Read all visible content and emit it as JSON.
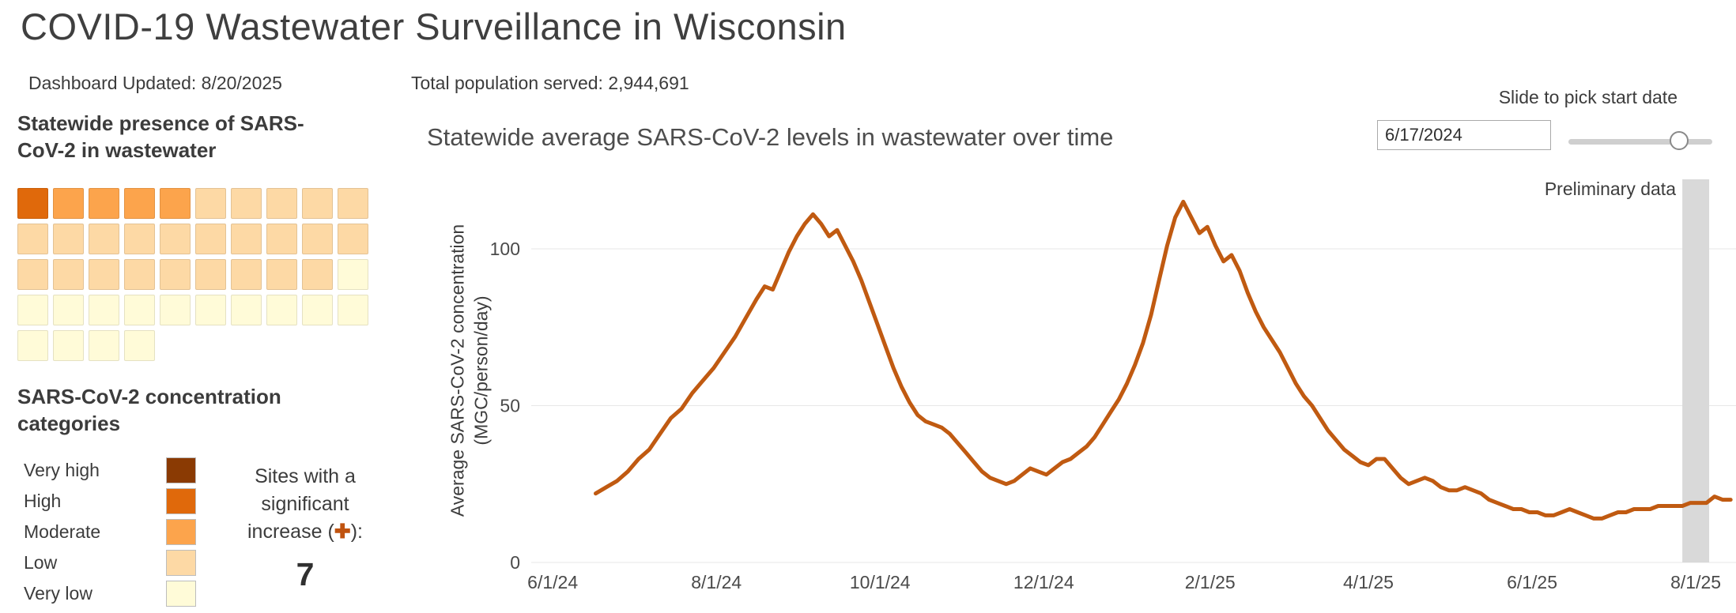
{
  "page": {
    "title": "COVID-19 Wastewater Surveillance in Wisconsin",
    "updated": "Dashboard Updated: 8/20/2025",
    "population": "Total population served: 2,944,691"
  },
  "presence": {
    "heading": "Statewide presence of SARS-CoV-2 in wastewater",
    "columns": 10,
    "grid": [
      [
        "high",
        "moderate",
        "moderate",
        "moderate",
        "moderate",
        "low",
        "low",
        "low",
        "low",
        "low"
      ],
      [
        "low",
        "low",
        "low",
        "low",
        "low",
        "low",
        "low",
        "low",
        "low",
        "low"
      ],
      [
        "low",
        "low",
        "low",
        "low",
        "low",
        "low",
        "low",
        "low",
        "low",
        "very_low"
      ],
      [
        "very_low",
        "very_low",
        "very_low",
        "very_low",
        "very_low",
        "very_low",
        "very_low",
        "very_low",
        "very_low",
        "very_low"
      ],
      [
        "very_low",
        "very_low",
        "very_low",
        "very_low"
      ]
    ]
  },
  "categories": {
    "heading": "SARS-CoV-2 concentration categories",
    "items": [
      {
        "key": "very_high",
        "label": "Very high",
        "color": "#8a3a03"
      },
      {
        "key": "high",
        "label": "High",
        "color": "#e0690b"
      },
      {
        "key": "moderate",
        "label": "Moderate",
        "color": "#fca44c"
      },
      {
        "key": "low",
        "label": "Low",
        "color": "#fdd9a5"
      },
      {
        "key": "very_low",
        "label": "Very low",
        "color": "#fffbd8"
      }
    ]
  },
  "sites_increase": {
    "line1": "Sites with a",
    "line2": "significant",
    "line3_prefix": "increase (",
    "plus_icon": "✚",
    "plus_color": "#c0530f",
    "line3_suffix": "):",
    "count": "7"
  },
  "controls": {
    "slider_label": "Slide to pick start date",
    "date_value": "6/17/2024"
  },
  "chart_labels": {
    "y_axis_line1": "Average SARS-CoV-2 concentration",
    "y_axis_line2": "(MGC/person/day)",
    "preliminary": "Preliminary data"
  },
  "chart_data": {
    "type": "line",
    "title": "Statewide average SARS-CoV-2 levels in wastewater over time",
    "xlabel": "",
    "ylabel": "Average SARS-CoV-2 concentration (MGC/person/day)",
    "x_domain": [
      "2024-05-24",
      "2025-08-16"
    ],
    "ylim": [
      0,
      122
    ],
    "y_ticks": [
      0,
      50,
      100
    ],
    "x_ticks": [
      {
        "date": "2024-06-01",
        "label": "6/1/24"
      },
      {
        "date": "2024-08-01",
        "label": "8/1/24"
      },
      {
        "date": "2024-10-01",
        "label": "10/1/24"
      },
      {
        "date": "2024-12-01",
        "label": "12/1/24"
      },
      {
        "date": "2025-02-01",
        "label": "2/1/25"
      },
      {
        "date": "2025-04-01",
        "label": "4/1/25"
      },
      {
        "date": "2025-06-01",
        "label": "6/1/25"
      },
      {
        "date": "2025-08-01",
        "label": "8/1/25"
      }
    ],
    "grid": "horizontal",
    "legend_position": "none",
    "line_color": "#c05a11",
    "preliminary_band": {
      "start": "2025-07-27",
      "end": "2025-08-06",
      "color": "#d9d9d9",
      "label": "Preliminary data"
    },
    "series": [
      {
        "name": "Statewide average SARS-CoV-2 concentration",
        "points": [
          [
            "2024-06-17",
            22
          ],
          [
            "2024-06-21",
            24
          ],
          [
            "2024-06-25",
            26
          ],
          [
            "2024-06-29",
            29
          ],
          [
            "2024-07-03",
            33
          ],
          [
            "2024-07-07",
            36
          ],
          [
            "2024-07-11",
            41
          ],
          [
            "2024-07-15",
            46
          ],
          [
            "2024-07-19",
            49
          ],
          [
            "2024-07-23",
            54
          ],
          [
            "2024-07-27",
            58
          ],
          [
            "2024-07-31",
            62
          ],
          [
            "2024-08-04",
            67
          ],
          [
            "2024-08-08",
            72
          ],
          [
            "2024-08-12",
            78
          ],
          [
            "2024-08-16",
            84
          ],
          [
            "2024-08-19",
            88
          ],
          [
            "2024-08-22",
            87
          ],
          [
            "2024-08-25",
            93
          ],
          [
            "2024-08-28",
            99
          ],
          [
            "2024-08-31",
            104
          ],
          [
            "2024-09-03",
            108
          ],
          [
            "2024-09-06",
            111
          ],
          [
            "2024-09-09",
            108
          ],
          [
            "2024-09-12",
            104
          ],
          [
            "2024-09-15",
            106
          ],
          [
            "2024-09-18",
            101
          ],
          [
            "2024-09-21",
            96
          ],
          [
            "2024-09-24",
            90
          ],
          [
            "2024-09-27",
            83
          ],
          [
            "2024-09-30",
            76
          ],
          [
            "2024-10-03",
            69
          ],
          [
            "2024-10-06",
            62
          ],
          [
            "2024-10-09",
            56
          ],
          [
            "2024-10-12",
            51
          ],
          [
            "2024-10-15",
            47
          ],
          [
            "2024-10-18",
            45
          ],
          [
            "2024-10-21",
            44
          ],
          [
            "2024-10-24",
            43
          ],
          [
            "2024-10-27",
            41
          ],
          [
            "2024-10-30",
            38
          ],
          [
            "2024-11-02",
            35
          ],
          [
            "2024-11-05",
            32
          ],
          [
            "2024-11-08",
            29
          ],
          [
            "2024-11-11",
            27
          ],
          [
            "2024-11-14",
            26
          ],
          [
            "2024-11-17",
            25
          ],
          [
            "2024-11-20",
            26
          ],
          [
            "2024-11-23",
            28
          ],
          [
            "2024-11-26",
            30
          ],
          [
            "2024-11-29",
            29
          ],
          [
            "2024-12-02",
            28
          ],
          [
            "2024-12-05",
            30
          ],
          [
            "2024-12-08",
            32
          ],
          [
            "2024-12-11",
            33
          ],
          [
            "2024-12-14",
            35
          ],
          [
            "2024-12-17",
            37
          ],
          [
            "2024-12-20",
            40
          ],
          [
            "2024-12-23",
            44
          ],
          [
            "2024-12-26",
            48
          ],
          [
            "2024-12-29",
            52
          ],
          [
            "2025-01-01",
            57
          ],
          [
            "2025-01-04",
            63
          ],
          [
            "2025-01-07",
            70
          ],
          [
            "2025-01-10",
            79
          ],
          [
            "2025-01-13",
            90
          ],
          [
            "2025-01-16",
            101
          ],
          [
            "2025-01-19",
            110
          ],
          [
            "2025-01-22",
            115
          ],
          [
            "2025-01-25",
            110
          ],
          [
            "2025-01-28",
            105
          ],
          [
            "2025-01-31",
            107
          ],
          [
            "2025-02-03",
            101
          ],
          [
            "2025-02-06",
            96
          ],
          [
            "2025-02-09",
            98
          ],
          [
            "2025-02-12",
            93
          ],
          [
            "2025-02-15",
            86
          ],
          [
            "2025-02-18",
            80
          ],
          [
            "2025-02-21",
            75
          ],
          [
            "2025-02-24",
            71
          ],
          [
            "2025-02-27",
            67
          ],
          [
            "2025-03-02",
            62
          ],
          [
            "2025-03-05",
            57
          ],
          [
            "2025-03-08",
            53
          ],
          [
            "2025-03-11",
            50
          ],
          [
            "2025-03-14",
            46
          ],
          [
            "2025-03-17",
            42
          ],
          [
            "2025-03-20",
            39
          ],
          [
            "2025-03-23",
            36
          ],
          [
            "2025-03-26",
            34
          ],
          [
            "2025-03-29",
            32
          ],
          [
            "2025-04-01",
            31
          ],
          [
            "2025-04-04",
            33
          ],
          [
            "2025-04-07",
            33
          ],
          [
            "2025-04-10",
            30
          ],
          [
            "2025-04-13",
            27
          ],
          [
            "2025-04-16",
            25
          ],
          [
            "2025-04-19",
            26
          ],
          [
            "2025-04-22",
            27
          ],
          [
            "2025-04-25",
            26
          ],
          [
            "2025-04-28",
            24
          ],
          [
            "2025-05-01",
            23
          ],
          [
            "2025-05-04",
            23
          ],
          [
            "2025-05-07",
            24
          ],
          [
            "2025-05-10",
            23
          ],
          [
            "2025-05-13",
            22
          ],
          [
            "2025-05-16",
            20
          ],
          [
            "2025-05-19",
            19
          ],
          [
            "2025-05-22",
            18
          ],
          [
            "2025-05-25",
            17
          ],
          [
            "2025-05-28",
            17
          ],
          [
            "2025-05-31",
            16
          ],
          [
            "2025-06-03",
            16
          ],
          [
            "2025-06-06",
            15
          ],
          [
            "2025-06-09",
            15
          ],
          [
            "2025-06-12",
            16
          ],
          [
            "2025-06-15",
            17
          ],
          [
            "2025-06-18",
            16
          ],
          [
            "2025-06-21",
            15
          ],
          [
            "2025-06-24",
            14
          ],
          [
            "2025-06-27",
            14
          ],
          [
            "2025-06-30",
            15
          ],
          [
            "2025-07-03",
            16
          ],
          [
            "2025-07-06",
            16
          ],
          [
            "2025-07-09",
            17
          ],
          [
            "2025-07-12",
            17
          ],
          [
            "2025-07-15",
            17
          ],
          [
            "2025-07-18",
            18
          ],
          [
            "2025-07-21",
            18
          ],
          [
            "2025-07-24",
            18
          ],
          [
            "2025-07-27",
            18
          ],
          [
            "2025-07-30",
            19
          ],
          [
            "2025-08-02",
            19
          ],
          [
            "2025-08-05",
            19
          ],
          [
            "2025-08-08",
            21
          ],
          [
            "2025-08-11",
            20
          ],
          [
            "2025-08-14",
            20
          ]
        ]
      }
    ]
  }
}
